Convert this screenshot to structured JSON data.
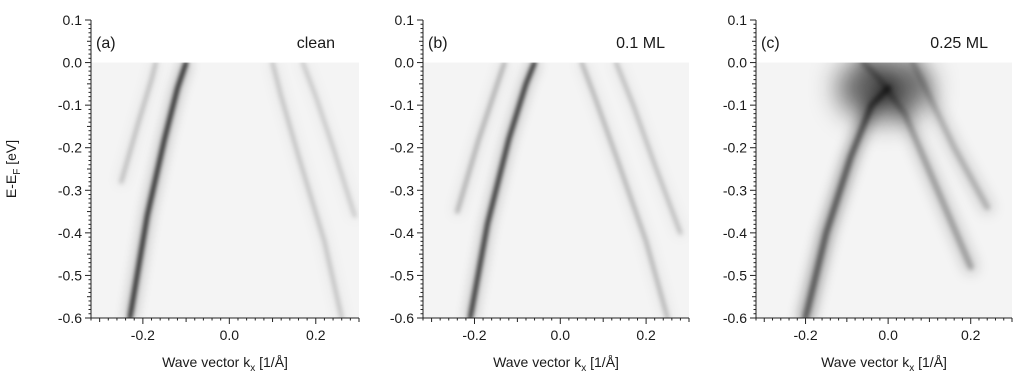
{
  "chart_data": [
    {
      "type": "heatmap",
      "panel_label": "(a)",
      "condition": "clean",
      "xlabel": "Wave vector k",
      "xlabel_sub": "x",
      "xlabel_unit": " [1/Å]",
      "ylabel": "E-E",
      "ylabel_sub": "F",
      "ylabel_unit": " [eV]",
      "xlim": [
        -0.32,
        0.3
      ],
      "ylim": [
        -0.6,
        0.1
      ],
      "x_ticks": [
        -0.2,
        0.0,
        0.2
      ],
      "x_tick_labels": [
        "-0.2",
        "0.0",
        "0.2"
      ],
      "y_ticks": [
        0.1,
        0.0,
        -0.1,
        -0.2,
        -0.3,
        -0.4,
        -0.5,
        -0.6
      ],
      "y_tick_labels": [
        "0.1",
        "0.0",
        "-0.1",
        "-0.2",
        "-0.3",
        "-0.4",
        "-0.5",
        "-0.6"
      ],
      "bands": [
        {
          "points": [
            [
              -0.23,
              -0.6
            ],
            [
              -0.19,
              -0.36
            ],
            [
              -0.15,
              -0.18
            ],
            [
              -0.12,
              -0.06
            ],
            [
              -0.1,
              0.0
            ]
          ],
          "intensity": 1.0
        },
        {
          "points": [
            [
              -0.25,
              -0.28
            ],
            [
              -0.21,
              -0.14
            ],
            [
              -0.18,
              -0.04
            ],
            [
              -0.17,
              0.0
            ]
          ],
          "intensity": 0.22
        },
        {
          "points": [
            [
              0.1,
              0.0
            ],
            [
              0.12,
              -0.08
            ],
            [
              0.16,
              -0.22
            ],
            [
              0.22,
              -0.42
            ],
            [
              0.26,
              -0.6
            ]
          ],
          "intensity": 0.2
        },
        {
          "points": [
            [
              0.17,
              0.0
            ],
            [
              0.2,
              -0.08
            ],
            [
              0.24,
              -0.2
            ],
            [
              0.29,
              -0.36
            ]
          ],
          "intensity": 0.18
        }
      ]
    },
    {
      "type": "heatmap",
      "panel_label": "(b)",
      "condition": "0.1 ML",
      "xlabel": "Wave vector k",
      "xlabel_sub": "x",
      "xlabel_unit": " [1/Å]",
      "ylabel": "",
      "xlim": [
        -0.32,
        0.3
      ],
      "ylim": [
        -0.6,
        0.1
      ],
      "x_ticks": [
        -0.2,
        0.0,
        0.2
      ],
      "x_tick_labels": [
        "-0.2",
        "0.0",
        "0.2"
      ],
      "y_ticks": [
        0.1,
        0.0,
        -0.1,
        -0.2,
        -0.3,
        -0.4,
        -0.5,
        -0.6
      ],
      "y_tick_labels": [
        "0.1",
        "0.0",
        "-0.1",
        "-0.2",
        "-0.3",
        "-0.4",
        "-0.5",
        "-0.6"
      ],
      "bands": [
        {
          "points": [
            [
              -0.21,
              -0.6
            ],
            [
              -0.17,
              -0.38
            ],
            [
              -0.12,
              -0.18
            ],
            [
              -0.08,
              -0.05
            ],
            [
              -0.06,
              0.0
            ]
          ],
          "intensity": 0.95
        },
        {
          "points": [
            [
              -0.24,
              -0.35
            ],
            [
              -0.19,
              -0.18
            ],
            [
              -0.15,
              -0.06
            ],
            [
              -0.13,
              0.0
            ]
          ],
          "intensity": 0.28
        },
        {
          "points": [
            [
              0.05,
              0.0
            ],
            [
              0.08,
              -0.08
            ],
            [
              0.13,
              -0.22
            ],
            [
              0.2,
              -0.42
            ],
            [
              0.25,
              -0.6
            ]
          ],
          "intensity": 0.25
        },
        {
          "points": [
            [
              0.13,
              0.0
            ],
            [
              0.17,
              -0.1
            ],
            [
              0.22,
              -0.24
            ],
            [
              0.28,
              -0.4
            ]
          ],
          "intensity": 0.22
        }
      ]
    },
    {
      "type": "heatmap",
      "panel_label": "(c)",
      "condition": "0.25 ML",
      "xlabel": "Wave vector k",
      "xlabel_sub": "x",
      "xlabel_unit": " [1/Å]",
      "ylabel": "",
      "xlim": [
        -0.32,
        0.3
      ],
      "ylim": [
        -0.6,
        0.1
      ],
      "x_ticks": [
        -0.2,
        0.0,
        0.2
      ],
      "x_tick_labels": [
        "-0.2",
        "0.0",
        "0.2"
      ],
      "y_ticks": [
        0.1,
        0.0,
        -0.1,
        -0.2,
        -0.3,
        -0.4,
        -0.5,
        -0.6
      ],
      "y_tick_labels": [
        "0.1",
        "0.0",
        "-0.1",
        "-0.2",
        "-0.3",
        "-0.4",
        "-0.5",
        "-0.6"
      ],
      "bands": [
        {
          "points": [
            [
              -0.2,
              -0.6
            ],
            [
              -0.15,
              -0.4
            ],
            [
              -0.09,
              -0.22
            ],
            [
              -0.04,
              -0.1
            ],
            [
              0.0,
              -0.06
            ]
          ],
          "intensity": 0.8
        },
        {
          "points": [
            [
              -0.06,
              0.0
            ],
            [
              -0.02,
              -0.04
            ],
            [
              0.04,
              -0.12
            ],
            [
              0.12,
              -0.3
            ],
            [
              0.2,
              -0.48
            ]
          ],
          "intensity": 0.4
        },
        {
          "points": [
            [
              0.06,
              0.0
            ],
            [
              0.1,
              -0.08
            ],
            [
              0.16,
              -0.2
            ],
            [
              0.24,
              -0.34
            ]
          ],
          "intensity": 0.3
        }
      ],
      "hotspot": {
        "x": -0.01,
        "y": -0.06,
        "intensity": 0.9
      }
    }
  ]
}
